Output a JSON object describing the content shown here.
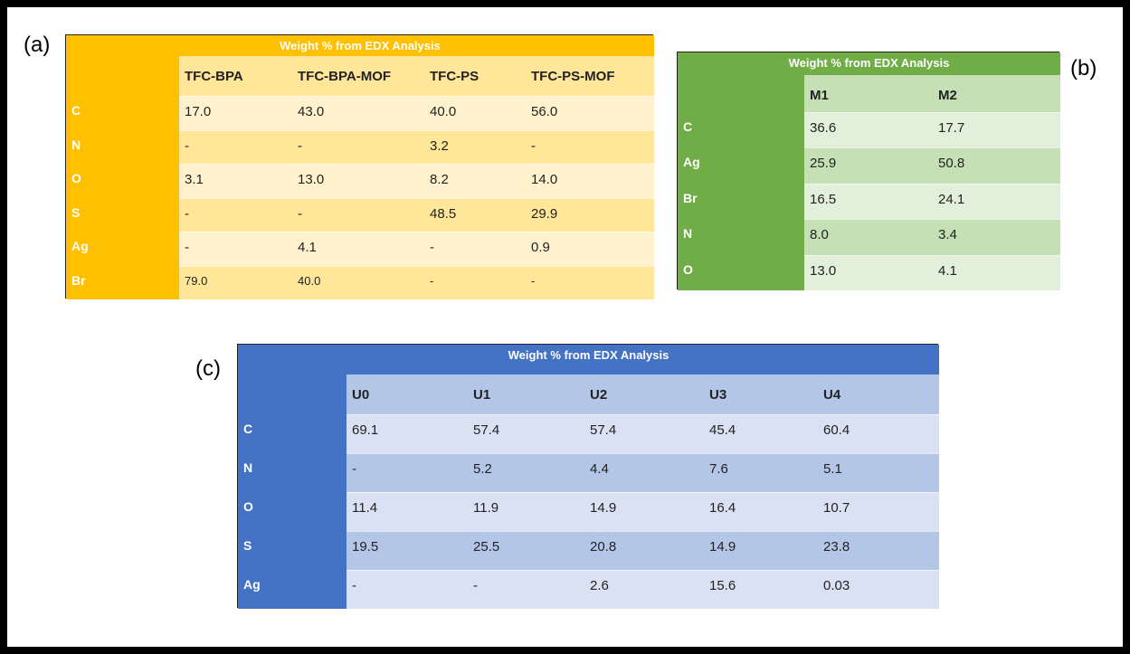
{
  "tables": [
    {
      "label": "(a)",
      "title": "Weight % from EDX Analysis",
      "columns": [
        "TFC-BPA",
        "TFC-BPA-MOF",
        "TFC-PS",
        "TFC-PS-MOF"
      ],
      "rows": [
        {
          "label": "C",
          "cells": [
            "17.0",
            "43.0",
            "40.0",
            "56.0"
          ]
        },
        {
          "label": "N",
          "cells": [
            "-",
            "-",
            "3.2",
            "-"
          ]
        },
        {
          "label": "O",
          "cells": [
            "3.1",
            "13.0",
            "8.2",
            "14.0"
          ]
        },
        {
          "label": "S",
          "cells": [
            "-",
            "-",
            "48.5",
            "29.9"
          ]
        },
        {
          "label": "Ag",
          "cells": [
            "-",
            "4.1",
            "-",
            "0.9"
          ]
        },
        {
          "label": "Br",
          "cells": [
            "79.0",
            "40.0",
            "-",
            "-"
          ]
        }
      ]
    },
    {
      "label": "(b)",
      "title": "Weight % from EDX Analysis",
      "columns": [
        "M1",
        "M2"
      ],
      "rows": [
        {
          "label": "C",
          "cells": [
            "36.6",
            "17.7"
          ]
        },
        {
          "label": "Ag",
          "cells": [
            "25.9",
            "50.8"
          ]
        },
        {
          "label": "Br",
          "cells": [
            "16.5",
            "24.1"
          ]
        },
        {
          "label": "N",
          "cells": [
            "8.0",
            "3.4"
          ]
        },
        {
          "label": "O",
          "cells": [
            "13.0",
            "4.1"
          ]
        }
      ]
    },
    {
      "label": "(c)",
      "title": "Weight % from EDX Analysis",
      "columns": [
        "U0",
        "U1",
        "U2",
        "U3",
        "U4"
      ],
      "rows": [
        {
          "label": "C",
          "cells": [
            "69.1",
            "57.4",
            "57.4",
            "45.4",
            "60.4"
          ]
        },
        {
          "label": "N",
          "cells": [
            "-",
            "5.2",
            "4.4",
            "7.6",
            "5.1"
          ]
        },
        {
          "label": "O",
          "cells": [
            "11.4",
            "11.9",
            "14.9",
            "16.4",
            "10.7"
          ]
        },
        {
          "label": "S",
          "cells": [
            "19.5",
            "25.5",
            "20.8",
            "14.9",
            "23.8"
          ]
        },
        {
          "label": "Ag",
          "cells": [
            "-",
            "-",
            "2.6",
            "15.6",
            "0.03"
          ]
        }
      ]
    }
  ]
}
